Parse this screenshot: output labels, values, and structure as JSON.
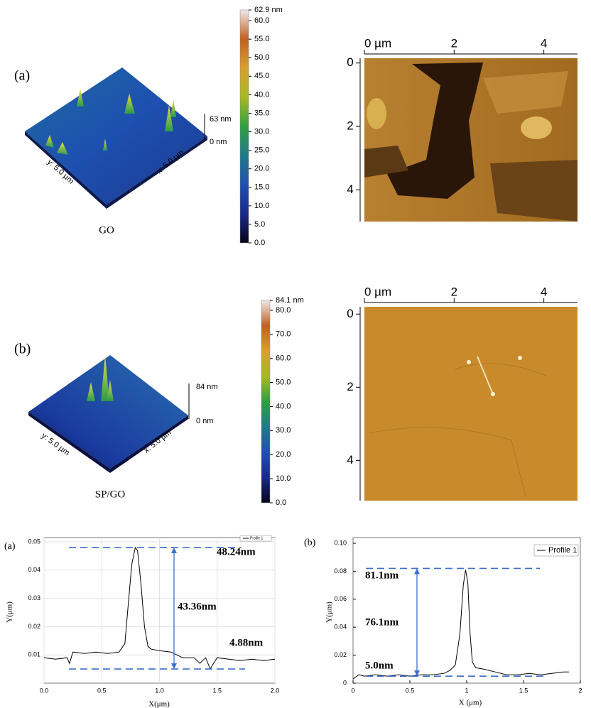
{
  "panels": [
    {
      "label": "(a)",
      "sample": "GO",
      "surface": {
        "height_label": "63 nm",
        "base_label": "0 nm",
        "y_label": "y: 5.0 µm",
        "x_label": "x: 5.0 µm"
      },
      "colorbar": {
        "ylim": [
          0,
          62.9
        ],
        "colormap": [
          "#05051a",
          "#1a2a8a",
          "#2050b0",
          "#1f7a8a",
          "#2ea040",
          "#a8b828",
          "#d8a030",
          "#c06020",
          "#f0e8e8"
        ],
        "yticks": [
          {
            "value": 0,
            "label": "0.0"
          },
          {
            "value": 5,
            "label": "5.0"
          },
          {
            "value": 10,
            "label": "10.0"
          },
          {
            "value": 15,
            "label": "15.0"
          },
          {
            "value": 20,
            "label": "20.0"
          },
          {
            "value": 25,
            "label": "25.0"
          },
          {
            "value": 30,
            "label": "30.0"
          },
          {
            "value": 35,
            "label": "35.0"
          },
          {
            "value": 40,
            "label": "40.0"
          },
          {
            "value": 45,
            "label": "45.0"
          },
          {
            "value": 50,
            "label": "50.0"
          },
          {
            "value": 55,
            "label": "55.0"
          },
          {
            "value": 60,
            "label": "60.0"
          },
          {
            "value": 62.9,
            "label": "62.9 nm"
          }
        ]
      },
      "image": {
        "xlim": [
          0,
          4.75
        ],
        "ylim": [
          -0.15,
          5
        ],
        "xticks": [
          {
            "value": 0,
            "label": "0 µm"
          },
          2,
          4
        ],
        "yticks": [
          0,
          2,
          4
        ]
      }
    },
    {
      "label": "(b)",
      "sample": "SP/GO",
      "surface": {
        "height_label": "84 nm",
        "base_label": "0 nm",
        "y_label": "y: 5.0 µm",
        "x_label": "x: 5.0 µm"
      },
      "colorbar": {
        "ylim": [
          0,
          84.1
        ],
        "colormap": [
          "#05051a",
          "#1a2a8a",
          "#2050b0",
          "#1f7a8a",
          "#2ea040",
          "#a8b828",
          "#d8a030",
          "#c06020",
          "#f0e8e8"
        ],
        "yticks": [
          {
            "value": 0,
            "label": "0.0"
          },
          {
            "value": 10,
            "label": "10.0"
          },
          {
            "value": 20,
            "label": "20.0"
          },
          {
            "value": 30,
            "label": "30.0"
          },
          {
            "value": 40,
            "label": "40.0"
          },
          {
            "value": 50,
            "label": "50.0"
          },
          {
            "value": 60,
            "label": "60.0"
          },
          {
            "value": 70,
            "label": "70.0"
          },
          {
            "value": 80,
            "label": "80.0"
          },
          {
            "value": 84.1,
            "label": "84.1 nm"
          }
        ]
      },
      "image": {
        "xlim": [
          0,
          4.75
        ],
        "ylim": [
          -0.2,
          5.1
        ],
        "xticks": [
          {
            "value": 0,
            "label": "0 µm"
          },
          2,
          4
        ],
        "yticks": [
          0,
          2,
          4
        ]
      }
    }
  ],
  "chart_data": [
    {
      "type": "line",
      "label": "(a)",
      "x_label": "X(μm)",
      "y_label": "Y(μm)",
      "xlim": [
        0,
        2
      ],
      "ylim": [
        0,
        0.05
      ],
      "xticks": [
        {
          "value": 0,
          "label": "0.0"
        },
        0.5,
        {
          "value": 1,
          "label": "1.0"
        },
        1.5,
        {
          "value": 2,
          "label": "2.0"
        }
      ],
      "yticks": [
        0.01,
        0.02,
        0.03,
        0.04,
        0.05
      ],
      "grid": true,
      "reference_lines": [
        0.048,
        0.005
      ],
      "annotations": [
        "48.24nm",
        "43.36nm",
        "4.88nm"
      ],
      "series": [
        {
          "name": "Profile 1",
          "color": "#000000",
          "x": [
            0,
            0.1,
            0.2,
            0.22,
            0.25,
            0.35,
            0.45,
            0.55,
            0.65,
            0.7,
            0.73,
            0.76,
            0.79,
            0.81,
            0.84,
            0.87,
            0.9,
            0.93,
            1.0,
            1.1,
            1.2,
            1.3,
            1.35,
            1.4,
            1.44,
            1.46,
            1.5,
            1.6,
            1.7,
            1.8,
            1.9,
            2.0
          ],
          "values": [
            0.009,
            0.0085,
            0.009,
            0.007,
            0.011,
            0.0105,
            0.011,
            0.0105,
            0.011,
            0.014,
            0.028,
            0.042,
            0.048,
            0.047,
            0.035,
            0.02,
            0.013,
            0.012,
            0.0115,
            0.011,
            0.009,
            0.009,
            0.007,
            0.009,
            0.005,
            0.0065,
            0.009,
            0.0085,
            0.008,
            0.0085,
            0.008,
            0.0085
          ]
        }
      ]
    },
    {
      "type": "line",
      "label": "(b)",
      "x_label": "X (μm)",
      "y_label": "Y(μm)",
      "xlim": [
        0,
        2
      ],
      "ylim": [
        0,
        0.1
      ],
      "xticks": [
        0,
        0.5,
        1,
        1.5,
        2
      ],
      "yticks": [
        0,
        0.02,
        0.04,
        0.06,
        0.08,
        {
          "value": 0.1,
          "label": "0.10"
        }
      ],
      "grid": false,
      "reference_lines": [
        0.082,
        0.005
      ],
      "annotations": [
        "81.1nm",
        "76.1nm",
        "5.0nm"
      ],
      "series": [
        {
          "name": "Profile 1",
          "color": "#000000",
          "x": [
            0,
            0.05,
            0.1,
            0.2,
            0.3,
            0.4,
            0.5,
            0.6,
            0.7,
            0.8,
            0.85,
            0.9,
            0.94,
            0.97,
            0.99,
            1.01,
            1.03,
            1.05,
            1.08,
            1.15,
            1.25,
            1.35,
            1.45,
            1.55,
            1.65,
            1.75,
            1.85,
            1.9
          ],
          "values": [
            0.003,
            0.006,
            0.005,
            0.006,
            0.005,
            0.006,
            0.005,
            0.006,
            0.006,
            0.007,
            0.009,
            0.013,
            0.035,
            0.07,
            0.081,
            0.072,
            0.035,
            0.015,
            0.011,
            0.01,
            0.008,
            0.006,
            0.006,
            0.007,
            0.006,
            0.007,
            0.008,
            0.008
          ]
        }
      ]
    }
  ]
}
